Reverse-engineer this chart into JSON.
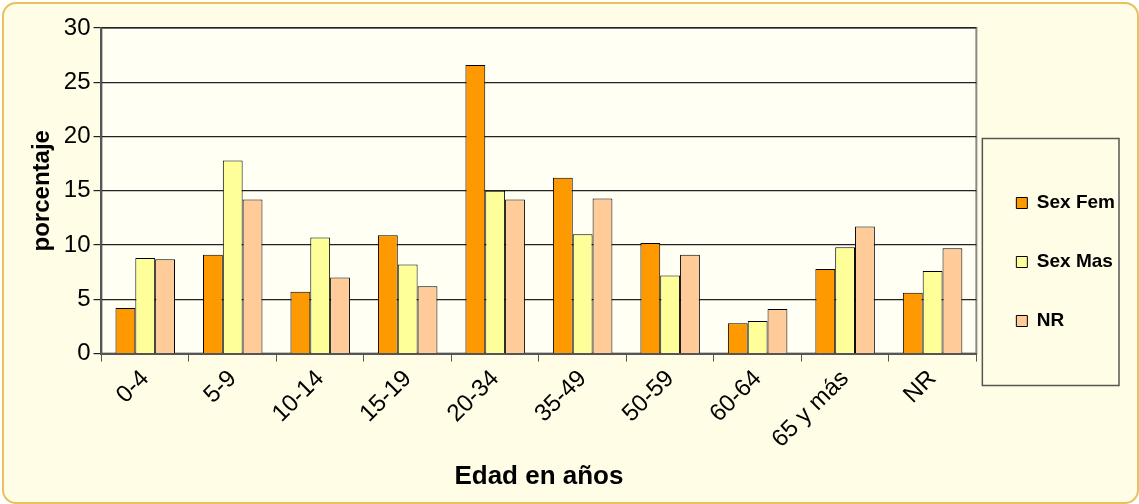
{
  "chart_data": {
    "type": "bar",
    "xlabel": "Edad en años",
    "ylabel": "porcentaje",
    "categories": [
      "0-4",
      "5-9",
      "10-14",
      "15-19",
      "20-34",
      "35-49",
      "50-59",
      "60-64",
      "65 y más",
      "NR"
    ],
    "series": [
      {
        "name": "Sex Fem",
        "color": "#ff9900",
        "values": [
          4.2,
          9.1,
          5.7,
          10.9,
          26.6,
          16.2,
          10.2,
          2.8,
          7.8,
          5.6
        ]
      },
      {
        "name": "Sex Mas",
        "color": "#ffff99",
        "values": [
          8.8,
          17.8,
          10.7,
          8.2,
          15.0,
          11.0,
          7.2,
          3.0,
          9.8,
          7.6
        ]
      },
      {
        "name": "NR",
        "color": "#ffcc99",
        "values": [
          8.7,
          14.2,
          7.0,
          6.2,
          14.2,
          14.3,
          9.1,
          4.1,
          11.7,
          9.7
        ]
      }
    ],
    "ylim": [
      0,
      30
    ],
    "yticks": [
      0,
      5,
      10,
      15,
      20,
      25,
      30
    ],
    "grid": "y",
    "legend": "right"
  }
}
